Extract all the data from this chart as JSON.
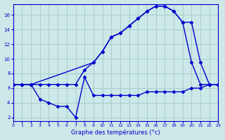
{
  "xlabel": "Graphe des températures (°c)",
  "bg_color": "#cce8e8",
  "grid_color": "#aacccc",
  "line_color": "#0000cc",
  "x_ticks": [
    0,
    1,
    2,
    3,
    4,
    5,
    6,
    7,
    8,
    9,
    10,
    11,
    12,
    13,
    14,
    15,
    16,
    17,
    18,
    19,
    20,
    21,
    22,
    23
  ],
  "y_ticks": [
    2,
    4,
    6,
    8,
    10,
    12,
    14,
    16
  ],
  "xlim": [
    0,
    23
  ],
  "ylim": [
    1.5,
    17.5
  ],
  "series": [
    {
      "x": [
        0,
        1,
        2,
        3,
        4,
        5,
        6,
        7,
        8,
        9,
        10,
        11,
        12,
        13,
        14,
        15,
        16,
        17,
        18,
        19,
        20,
        21,
        22,
        23
      ],
      "y": [
        6.5,
        6.5,
        6.5,
        4.5,
        4.0,
        3.5,
        3.5,
        2.0,
        7.5,
        5.0,
        5.0,
        5.0,
        5.0,
        5.0,
        5.0,
        5.5,
        5.5,
        5.5,
        5.5,
        5.5,
        6.0,
        6.0,
        6.5,
        6.5
      ]
    },
    {
      "x": [
        0,
        1,
        2,
        3,
        4,
        5,
        6,
        7,
        8,
        9,
        10,
        11,
        12,
        13,
        14,
        15,
        16,
        17,
        18,
        19,
        20,
        21,
        22,
        23
      ],
      "y": [
        6.5,
        6.5,
        6.5,
        6.5,
        6.5,
        6.5,
        6.5,
        6.5,
        8.5,
        9.5,
        11.0,
        13.0,
        13.5,
        14.5,
        15.5,
        16.5,
        17.2,
        17.2,
        16.5,
        15.0,
        9.5,
        6.5,
        6.5,
        6.5
      ]
    },
    {
      "x": [
        0,
        1,
        2,
        9,
        10,
        11,
        12,
        13,
        14,
        15,
        16,
        17,
        18,
        19,
        20,
        21,
        22,
        23
      ],
      "y": [
        6.5,
        6.5,
        6.5,
        9.5,
        11.0,
        13.0,
        13.5,
        14.5,
        15.5,
        16.5,
        17.2,
        17.2,
        16.5,
        15.0,
        15.0,
        9.5,
        6.5,
        6.5
      ]
    }
  ]
}
